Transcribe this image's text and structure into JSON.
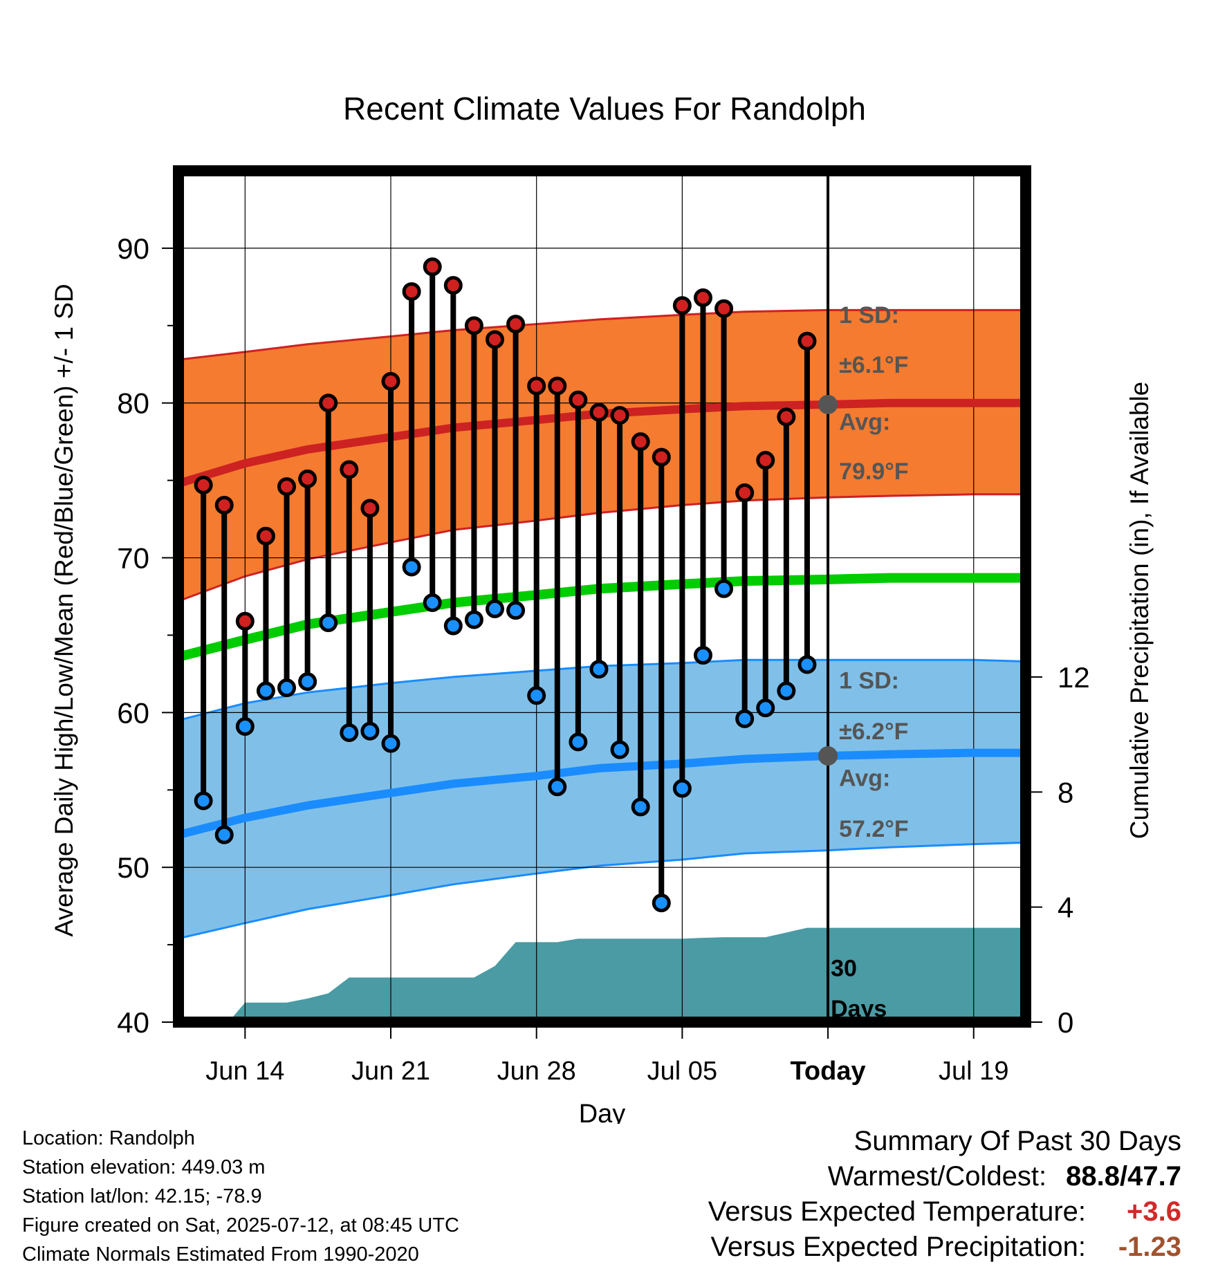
{
  "chart_data": {
    "type": "line",
    "title": "Recent Climate Values For Randolph",
    "xlabel": "Day",
    "ylabel": "Average Daily High/Low/Mean (Red/Blue/Green) +/- 1 SD",
    "y2label": "Cumulative Precipitation (in), If Available",
    "ylim": [
      40,
      95
    ],
    "y2lim": [
      0,
      29.6
    ],
    "y_ticks": [
      40,
      50,
      60,
      70,
      80,
      90
    ],
    "y2_ticks": [
      0,
      4,
      8,
      12
    ],
    "x_ticks": [
      {
        "day": 14,
        "label": "Jun 14"
      },
      {
        "day": 21,
        "label": "Jun 21"
      },
      {
        "day": 28,
        "label": "Jun 28"
      },
      {
        "day": 35,
        "label": "Jul 05"
      },
      {
        "day": 42,
        "label": "Today"
      },
      {
        "day": 49,
        "label": "Jul 19"
      }
    ],
    "xlim": [
      10.8,
      51.5
    ],
    "today_day": 42,
    "grid": true,
    "colors": {
      "high_band": "#f47b30",
      "high_line": "#cc2222",
      "low_band": "#80c0e8",
      "low_line": "#1a8cff",
      "mean_line": "#00cc00",
      "precip": "#4a9ba3",
      "high_dot": "#d02020",
      "low_dot": "#1a90ff",
      "annot": "#555555",
      "warm": "#d02a2a",
      "precip_diff": "#a0522d"
    },
    "normal_days": [
      10.8,
      14,
      17,
      21,
      24,
      28,
      31,
      35,
      38,
      42,
      45,
      49,
      51.5
    ],
    "normal_high_avg": [
      74.8,
      76.1,
      77.0,
      77.8,
      78.4,
      78.9,
      79.3,
      79.6,
      79.8,
      79.9,
      80.0,
      80.0,
      80.0
    ],
    "normal_high_upper": [
      82.8,
      83.3,
      83.8,
      84.3,
      84.7,
      85.1,
      85.4,
      85.7,
      85.9,
      86.0,
      86.0,
      86.0,
      86.0
    ],
    "normal_high_lower": [
      67.2,
      68.8,
      69.9,
      71.0,
      71.8,
      72.4,
      72.9,
      73.4,
      73.7,
      73.9,
      74.0,
      74.1,
      74.1
    ],
    "normal_mean": [
      63.6,
      64.7,
      65.7,
      66.5,
      67.1,
      67.6,
      68.0,
      68.3,
      68.5,
      68.6,
      68.7,
      68.7,
      68.7
    ],
    "normal_low_avg": [
      52.1,
      53.2,
      54.0,
      54.8,
      55.4,
      55.9,
      56.4,
      56.7,
      57.0,
      57.2,
      57.3,
      57.4,
      57.4
    ],
    "normal_low_upper": [
      59.5,
      60.6,
      61.3,
      61.9,
      62.3,
      62.7,
      63.0,
      63.2,
      63.4,
      63.4,
      63.4,
      63.4,
      63.3
    ],
    "normal_low_lower": [
      45.4,
      46.4,
      47.3,
      48.2,
      48.9,
      49.6,
      50.1,
      50.5,
      50.9,
      51.1,
      51.3,
      51.5,
      51.6
    ],
    "obs_days": [
      12,
      13,
      14,
      15,
      16,
      17,
      18,
      19,
      20,
      21,
      22,
      23,
      24,
      25,
      26,
      27,
      28,
      29,
      30,
      31,
      32,
      33,
      34,
      35,
      36,
      37,
      38,
      39,
      40,
      41
    ],
    "obs_high": [
      74.7,
      73.4,
      65.9,
      71.4,
      74.6,
      75.1,
      80.0,
      75.7,
      73.2,
      81.4,
      87.2,
      88.8,
      87.6,
      85.0,
      84.1,
      85.1,
      81.1,
      81.1,
      80.2,
      79.4,
      79.2,
      77.5,
      76.5,
      86.3,
      86.8,
      86.1,
      74.2,
      76.3,
      79.1,
      84.0
    ],
    "obs_low": [
      54.3,
      52.1,
      59.1,
      61.4,
      61.6,
      62.0,
      65.8,
      58.7,
      58.8,
      58.0,
      69.4,
      67.1,
      65.6,
      66.0,
      66.7,
      66.6,
      61.1,
      55.2,
      58.1,
      62.8,
      57.6,
      53.9,
      47.7,
      55.1,
      63.7,
      68.0,
      59.6,
      60.3,
      61.4,
      63.1
    ],
    "precip_days": [
      10.8,
      13.2,
      14,
      16,
      17,
      18,
      19,
      20,
      24,
      25,
      26,
      27,
      28,
      29,
      30,
      34,
      35,
      36,
      37,
      38,
      39,
      41,
      42,
      51.5
    ],
    "precip_in": [
      0,
      0,
      0.68,
      0.68,
      0.82,
      1.0,
      1.55,
      1.55,
      1.55,
      1.55,
      1.95,
      2.78,
      2.78,
      2.78,
      2.9,
      2.9,
      2.9,
      2.93,
      2.95,
      2.95,
      2.95,
      3.28,
      3.28,
      3.28
    ],
    "annotations": {
      "high_sd_label": "1 SD:",
      "high_sd_value": "±6.1°F",
      "high_avg_label": "Avg:",
      "high_avg_value": "79.9°F",
      "low_sd_label": "1 SD:",
      "low_sd_value": "±6.2°F",
      "low_avg_label": "Avg:",
      "low_avg_value": "57.2°F",
      "period_line1": "30",
      "period_line2": "Days"
    }
  },
  "info": {
    "location": "Location: Randolph",
    "elevation": "Station elevation: 449.03 m",
    "latlon": "Station lat/lon: 42.15; -78.9",
    "created": "Figure created on Sat, 2025-07-12, at 08:45 UTC",
    "normals": "Climate Normals Estimated From 1990-2020"
  },
  "summary": {
    "title": "Summary Of Past 30 Days",
    "warm_cold_label": "Warmest/Coldest:",
    "warm_value": "88.8",
    "cold_value": "47.7",
    "temp_label": "Versus Expected Temperature:",
    "temp_value": "+3.6",
    "precip_label": "Versus Expected Precipitation:",
    "precip_value": "-1.23"
  }
}
